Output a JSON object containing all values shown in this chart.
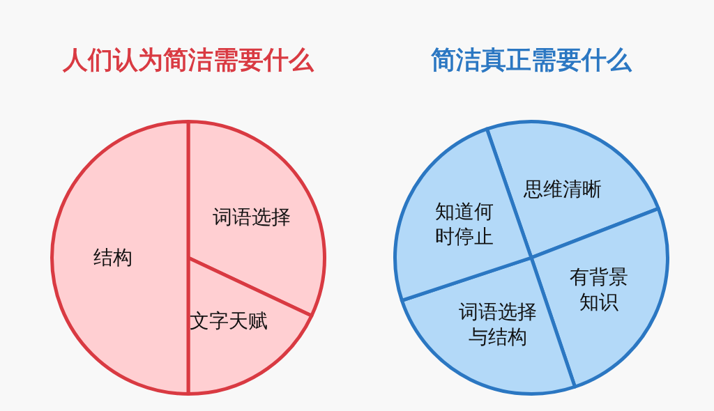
{
  "chart_data": [
    {
      "type": "pie",
      "title": "人们认为简洁需要什么",
      "categories": [
        "词语选择",
        "文字天赋",
        "结构"
      ],
      "values": [
        32,
        18,
        50
      ],
      "colors": [
        "#ffcfd2",
        "#ffcfd2",
        "#ffcfd2"
      ]
    },
    {
      "type": "pie",
      "title": "简洁真正需要什么",
      "categories": [
        "思维清晰",
        "有背景知识",
        "词语选择与结构",
        "知道何时停止"
      ],
      "values": [
        24.4,
        25.7,
        25.1,
        24.8
      ],
      "colors": [
        "#b3d9f8",
        "#b3d9f8",
        "#b3d9f8",
        "#b3d9f8"
      ]
    }
  ]
}
